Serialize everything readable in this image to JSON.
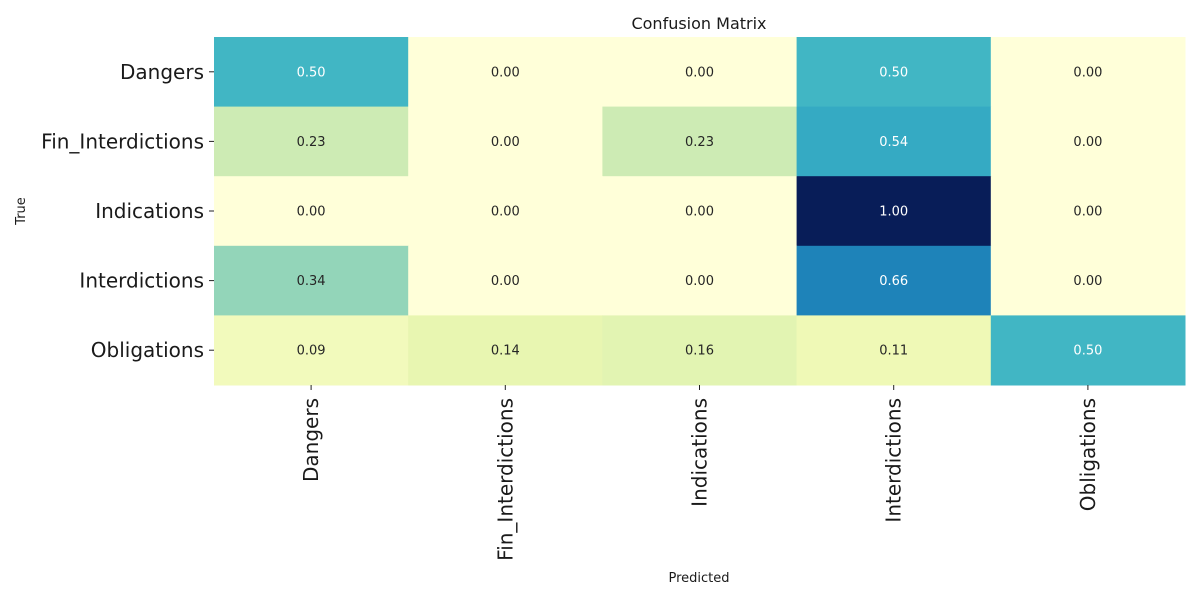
{
  "chart_data": {
    "type": "heatmap",
    "title": "Confusion Matrix",
    "xlabel": "Predicted",
    "ylabel": "True",
    "row_labels": [
      "Dangers",
      "Fin_Interdictions",
      "Indications",
      "Interdictions",
      "Obligations"
    ],
    "col_labels": [
      "Dangers",
      "Fin_Interdictions",
      "Indications",
      "Interdictions",
      "Obligations"
    ],
    "values": [
      [
        0.5,
        0.0,
        0.0,
        0.5,
        0.0
      ],
      [
        0.23,
        0.0,
        0.23,
        0.54,
        0.0
      ],
      [
        0.0,
        0.0,
        0.0,
        1.0,
        0.0
      ],
      [
        0.34,
        0.0,
        0.0,
        0.66,
        0.0
      ],
      [
        0.09,
        0.14,
        0.16,
        0.11,
        0.5
      ]
    ],
    "value_range": [
      0,
      1
    ],
    "colormap": "YlGnBu",
    "colorbar": false,
    "annotation_format": "0.00"
  }
}
